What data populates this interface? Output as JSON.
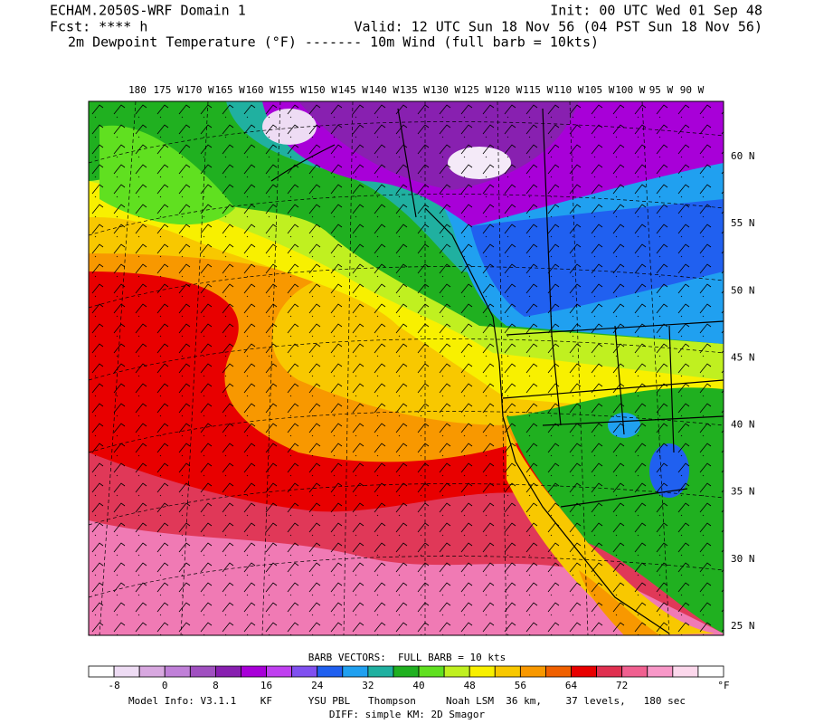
{
  "header": {
    "model": "ECHAM.2050S-WRF Domain 1",
    "init": "Init: 00 UTC Wed 01 Sep 48",
    "forecast": "Fcst: **** h",
    "valid": "Valid: 12 UTC Sun 18 Nov 56 (04 PST Sun 18 Nov 56)",
    "fields": "2m Dewpoint Temperature (°F) ------- 10m Wind (full barb = 10kts)"
  },
  "map": {
    "longitude_labels": [
      "180",
      "175 W",
      "170 W",
      "165 W",
      "160 W",
      "155 W",
      "150 W",
      "145 W",
      "140 W",
      "135 W",
      "130 W",
      "125 W",
      "120 W",
      "115 W",
      "110 W",
      "105 W",
      "100 W",
      "95 W",
      "90 W"
    ],
    "latitude_labels": [
      "60 N",
      "55 N",
      "50 N",
      "45 N",
      "40 N",
      "35 N",
      "30 N",
      "25 N"
    ]
  },
  "legend": {
    "title": "BARB VECTORS:  FULL BARB = 10 kts",
    "colors": [
      "#ffffff",
      "#eedcf4",
      "#d8a8e0",
      "#c080d8",
      "#a050c0",
      "#8820b0",
      "#a800d8",
      "#c040f0",
      "#8050f0",
      "#2060f0",
      "#20a0f0",
      "#20b0a0",
      "#20b020",
      "#60e020",
      "#c0f020",
      "#f8f000",
      "#f8c800",
      "#f89800",
      "#f06000",
      "#e80000",
      "#e03050",
      "#f06090",
      "#f898c8",
      "#fcd8ec",
      "#ffffff"
    ],
    "labels": [
      "-8",
      "0",
      "8",
      "16",
      "24",
      "32",
      "40",
      "48",
      "56",
      "64",
      "72"
    ],
    "unit": "°F"
  },
  "footer": {
    "model_info": "Model Info: V3.1.1    KF      YSU PBL   Thompson     Noah LSM  36 km,    37 levels,   180 sec",
    "diff": "DIFF: simple KM: 2D Smagor"
  }
}
